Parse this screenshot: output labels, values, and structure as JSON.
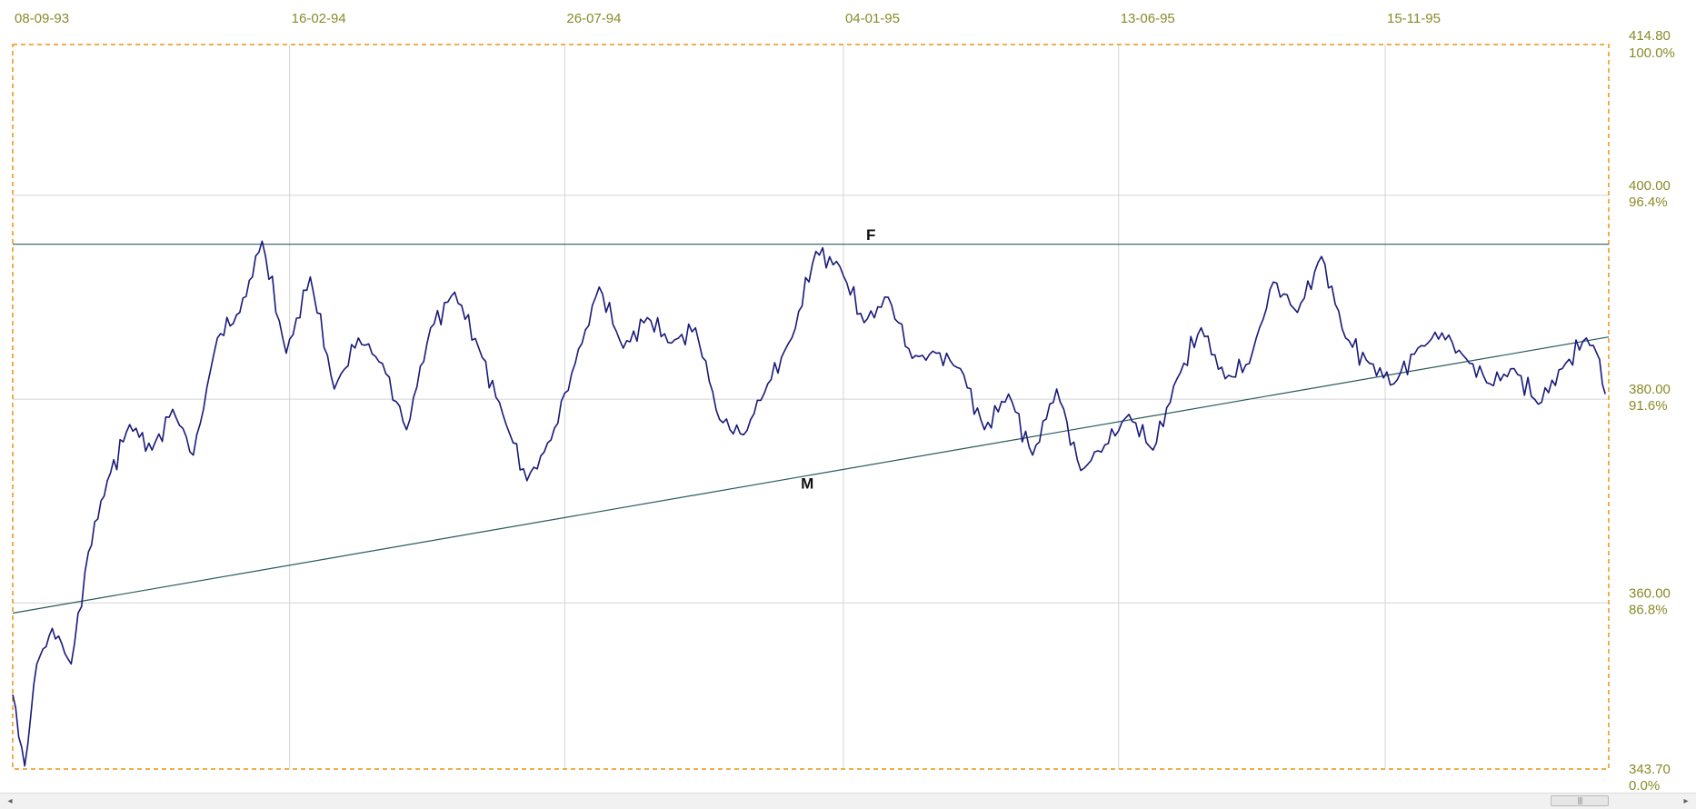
{
  "chart_data": {
    "type": "line",
    "title": "",
    "xlabel": "",
    "ylabel": "",
    "ylim": [
      343.7,
      414.8
    ],
    "grid": true,
    "x_tick_labels": [
      "08-09-93",
      "16-02-94",
      "26-07-94",
      "04-01-95",
      "13-06-95",
      "15-11-95"
    ],
    "y_ticks": [
      {
        "value": 414.8,
        "label": "414.80",
        "pct": "100.0%"
      },
      {
        "value": 400.0,
        "label": "400.00",
        "pct": "96.4%"
      },
      {
        "value": 380.0,
        "label": "380.00",
        "pct": "91.6%"
      },
      {
        "value": 360.0,
        "label": "360.00",
        "pct": "86.8%"
      },
      {
        "value": 343.7,
        "label": "343.70",
        "pct": "0.0%"
      }
    ],
    "x_range": [
      "1993-09-08",
      "1996-03-24"
    ],
    "series": [
      {
        "color": "#1a1a7a",
        "x": [
          "1993-09-08",
          "1993-09-15",
          "1993-09-22",
          "1993-10-01",
          "1993-10-12",
          "1993-10-22",
          "1993-11-02",
          "1993-11-15",
          "1993-11-28",
          "1993-12-10",
          "1993-12-22",
          "1994-01-05",
          "1994-01-18",
          "1994-01-31",
          "1994-02-14",
          "1994-02-28",
          "1994-03-14",
          "1994-03-28",
          "1994-04-11",
          "1994-04-25",
          "1994-05-09",
          "1994-05-23",
          "1994-06-06",
          "1994-06-20",
          "1994-07-04",
          "1994-07-18",
          "1994-08-01",
          "1994-08-15",
          "1994-08-29",
          "1994-09-12",
          "1994-09-26",
          "1994-10-10",
          "1994-10-24",
          "1994-11-07",
          "1994-11-21",
          "1994-12-05",
          "1994-12-19",
          "1995-01-02",
          "1995-01-16",
          "1995-01-30",
          "1995-02-13",
          "1995-02-27",
          "1995-03-13",
          "1995-03-27",
          "1995-04-10",
          "1995-04-24",
          "1995-05-08",
          "1995-05-22",
          "1995-06-05",
          "1995-06-19",
          "1995-07-03",
          "1995-07-17",
          "1995-07-31",
          "1995-08-14",
          "1995-08-28",
          "1995-09-11",
          "1995-09-25",
          "1995-10-09",
          "1995-10-23",
          "1995-11-06",
          "1995-11-20",
          "1995-12-04",
          "1995-12-18",
          "1996-01-01",
          "1996-01-15",
          "1996-01-29",
          "1996-02-12",
          "1996-02-26",
          "1996-03-11",
          "1996-03-17",
          "1996-03-22"
        ],
        "values": [
          351.0,
          344.0,
          354.0,
          357.5,
          354.0,
          365.0,
          372.0,
          377.5,
          375.0,
          379.0,
          374.5,
          386.0,
          388.5,
          395.5,
          384.5,
          392.0,
          381.0,
          386.0,
          383.5,
          377.0,
          387.0,
          390.5,
          385.0,
          378.5,
          372.0,
          376.0,
          383.5,
          391.0,
          385.0,
          388.0,
          385.5,
          387.0,
          378.0,
          376.5,
          381.5,
          386.0,
          394.5,
          393.0,
          387.5,
          390.0,
          384.0,
          384.5,
          383.0,
          377.0,
          380.5,
          374.5,
          381.0,
          373.0,
          375.5,
          378.5,
          375.0,
          382.0,
          387.0,
          382.0,
          383.5,
          391.5,
          388.5,
          394.0,
          386.0,
          383.5,
          381.5,
          385.0,
          386.5,
          384.0,
          381.5,
          383.0,
          379.5,
          383.0,
          386.0,
          384.5,
          380.5
        ]
      }
    ],
    "annotations": [
      {
        "label": "F",
        "x": "1995-01-20",
        "y": 395.6
      },
      {
        "label": "M",
        "x": "1994-12-14",
        "y": 371.2
      }
    ],
    "trend_lines": [
      {
        "x1": "1993-09-08",
        "y1": 395.2,
        "x2": "1996-03-24",
        "y2": 395.2
      },
      {
        "x1": "1993-09-08",
        "y1": 359.0,
        "x2": "1996-03-24",
        "y2": 386.1
      }
    ]
  },
  "scrollbar": {
    "left_arrow": "◂",
    "right_arrow": "▸",
    "thumb_grip": "|||"
  }
}
